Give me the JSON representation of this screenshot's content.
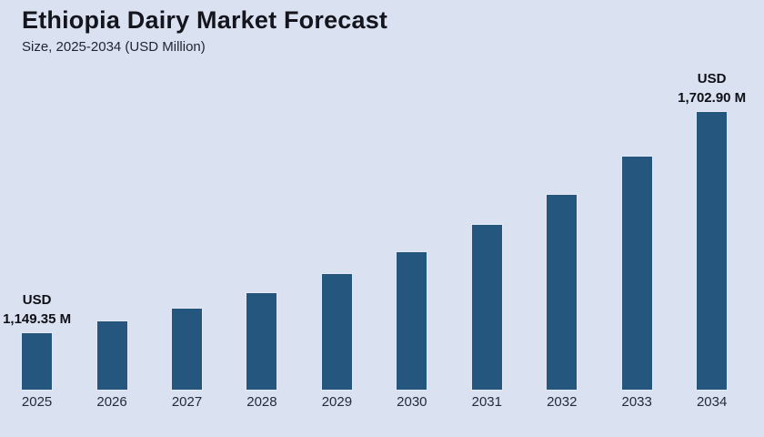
{
  "header": {
    "title": "Ethiopia Dairy Market Forecast",
    "subtitle": "Size, 2025-2034 (USD Million)"
  },
  "colors": {
    "background": "#dae1f1",
    "bar": "#25567e",
    "title_text": "#15161d",
    "subtitle_text": "#1e2430",
    "tick_text": "#242b38",
    "value_label_text": "#0e1016"
  },
  "chart_data": {
    "type": "bar",
    "title": "Ethiopia Dairy Market Forecast",
    "subtitle": "Size, 2025-2034 (USD Million)",
    "unit": "USD Million",
    "categories": [
      "2025",
      "2026",
      "2027",
      "2028",
      "2029",
      "2030",
      "2031",
      "2032",
      "2033",
      "2034"
    ],
    "values": [
      1149.35,
      1179,
      1211,
      1249,
      1298,
      1353,
      1420,
      1496,
      1592,
      1702.9
    ],
    "labeled_points": [
      {
        "category": "2025",
        "lines": [
          "USD",
          "1,149.35 M"
        ]
      },
      {
        "category": "2034",
        "lines": [
          "USD",
          "1,702.90 M"
        ]
      }
    ],
    "ylim": [
      1008,
      1703
    ],
    "grid": false,
    "legend": "none",
    "xlabel": "",
    "ylabel": ""
  }
}
